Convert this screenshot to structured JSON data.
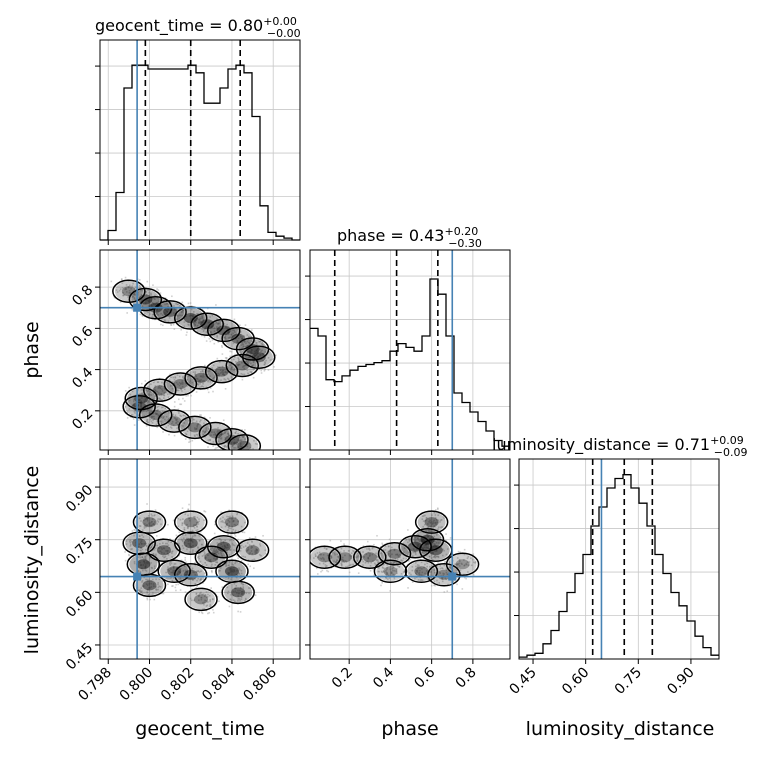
{
  "colors": {
    "truth": "#4682b4",
    "line": "#000000",
    "grid": "#c8c8c8",
    "density": "#000000"
  },
  "titles": {
    "geocent_time": {
      "text": "geocent_time = 0.80",
      "plus": "+0.00",
      "minus": "−0.00"
    },
    "phase": {
      "text": "phase = 0.43",
      "plus": "+0.20",
      "minus": "−0.30"
    },
    "luminosity_distance": {
      "text": "luminosity_distance = 0.71",
      "plus": "+0.09",
      "minus": "−0.09"
    }
  },
  "axis_labels": {
    "x_geocent_time": "geocent_time",
    "x_phase": "phase",
    "x_luminosity_distance": "luminosity_distance",
    "y_phase": "phase",
    "y_luminosity_distance": "luminosity_distance"
  },
  "chart_data": {
    "type": "corner",
    "parameters": [
      "geocent_time",
      "phase",
      "luminosity_distance"
    ],
    "ranges": {
      "geocent_time": [
        0.7976,
        0.8073
      ],
      "phase": [
        0.01,
        0.98
      ],
      "luminosity_distance": [
        0.41,
        0.98
      ]
    },
    "ticks": {
      "geocent_time": [
        "0.798",
        "0.800",
        "0.802",
        "0.804",
        "0.806"
      ],
      "phase": [
        "0.2",
        "0.4",
        "0.6",
        "0.8"
      ],
      "luminosity_distance": [
        "0.45",
        "0.60",
        "0.75",
        "0.90"
      ]
    },
    "truth": {
      "geocent_time": 0.7994,
      "phase": 0.7,
      "luminosity_distance": 0.645
    },
    "quantiles": {
      "geocent_time": [
        0.7998,
        0.802,
        0.8044
      ],
      "phase": [
        0.13,
        0.43,
        0.63
      ],
      "luminosity_distance": [
        0.62,
        0.71,
        0.79
      ]
    },
    "histograms": {
      "geocent_time": [
        0.0,
        0.05,
        0.25,
        0.8,
        0.92,
        0.92,
        0.9,
        0.9,
        0.9,
        0.9,
        0.9,
        0.92,
        0.88,
        0.72,
        0.72,
        0.8,
        0.9,
        0.92,
        0.88,
        0.65,
        0.18,
        0.04,
        0.02,
        0.01,
        0.0
      ],
      "phase": [
        0.64,
        0.6,
        0.37,
        0.36,
        0.39,
        0.42,
        0.44,
        0.45,
        0.46,
        0.47,
        0.52,
        0.56,
        0.54,
        0.52,
        0.6,
        0.9,
        0.82,
        0.6,
        0.3,
        0.25,
        0.2,
        0.15,
        0.1,
        0.05,
        0.02
      ],
      "luminosity_distance": [
        0.01,
        0.02,
        0.03,
        0.08,
        0.15,
        0.25,
        0.35,
        0.45,
        0.55,
        0.7,
        0.8,
        0.9,
        0.95,
        0.97,
        0.9,
        0.82,
        0.7,
        0.55,
        0.45,
        0.35,
        0.28,
        0.2,
        0.12,
        0.06,
        0.02
      ]
    },
    "density_2d": {
      "phase_vs_geocent_time": [
        [
          0.799,
          0.78,
          0.5
        ],
        [
          0.7998,
          0.74,
          0.8
        ],
        [
          0.8003,
          0.7,
          0.8
        ],
        [
          0.801,
          0.68,
          0.8
        ],
        [
          0.802,
          0.65,
          0.9
        ],
        [
          0.8028,
          0.62,
          0.9
        ],
        [
          0.8036,
          0.59,
          0.8
        ],
        [
          0.8043,
          0.55,
          0.7
        ],
        [
          0.805,
          0.5,
          0.8
        ],
        [
          0.8053,
          0.46,
          0.7
        ],
        [
          0.8045,
          0.42,
          0.6
        ],
        [
          0.8035,
          0.39,
          0.7
        ],
        [
          0.8025,
          0.36,
          0.7
        ],
        [
          0.8015,
          0.33,
          0.6
        ],
        [
          0.8005,
          0.3,
          0.6
        ],
        [
          0.7996,
          0.26,
          0.7
        ],
        [
          0.7995,
          0.22,
          0.6
        ],
        [
          0.8003,
          0.18,
          0.6
        ],
        [
          0.8012,
          0.15,
          0.5
        ],
        [
          0.8022,
          0.12,
          0.6
        ],
        [
          0.8032,
          0.09,
          0.6
        ],
        [
          0.804,
          0.06,
          0.6
        ],
        [
          0.8046,
          0.03,
          0.5
        ]
      ],
      "luminosity_distance_vs_geocent_time": [
        [
          0.7995,
          0.74,
          0.8
        ],
        [
          0.7997,
          0.68,
          1.0
        ],
        [
          0.8,
          0.62,
          0.8
        ],
        [
          0.8007,
          0.72,
          0.8
        ],
        [
          0.8012,
          0.66,
          0.7
        ],
        [
          0.802,
          0.74,
          0.9
        ],
        [
          0.802,
          0.65,
          0.7
        ],
        [
          0.803,
          0.7,
          0.7
        ],
        [
          0.8036,
          0.73,
          0.9
        ],
        [
          0.804,
          0.66,
          1.0
        ],
        [
          0.8043,
          0.6,
          0.8
        ],
        [
          0.805,
          0.72,
          0.6
        ],
        [
          0.8,
          0.8,
          0.6
        ],
        [
          0.804,
          0.8,
          0.6
        ],
        [
          0.802,
          0.8,
          0.5
        ],
        [
          0.8025,
          0.58,
          0.5
        ]
      ],
      "luminosity_distance_vs_phase": [
        [
          0.08,
          0.7,
          0.5
        ],
        [
          0.18,
          0.7,
          0.5
        ],
        [
          0.3,
          0.7,
          0.6
        ],
        [
          0.42,
          0.71,
          0.6
        ],
        [
          0.52,
          0.73,
          0.8
        ],
        [
          0.58,
          0.75,
          1.0
        ],
        [
          0.62,
          0.72,
          0.9
        ],
        [
          0.6,
          0.8,
          0.7
        ],
        [
          0.55,
          0.66,
          0.6
        ],
        [
          0.66,
          0.65,
          0.5
        ],
        [
          0.75,
          0.68,
          0.4
        ],
        [
          0.4,
          0.66,
          0.4
        ]
      ]
    }
  }
}
